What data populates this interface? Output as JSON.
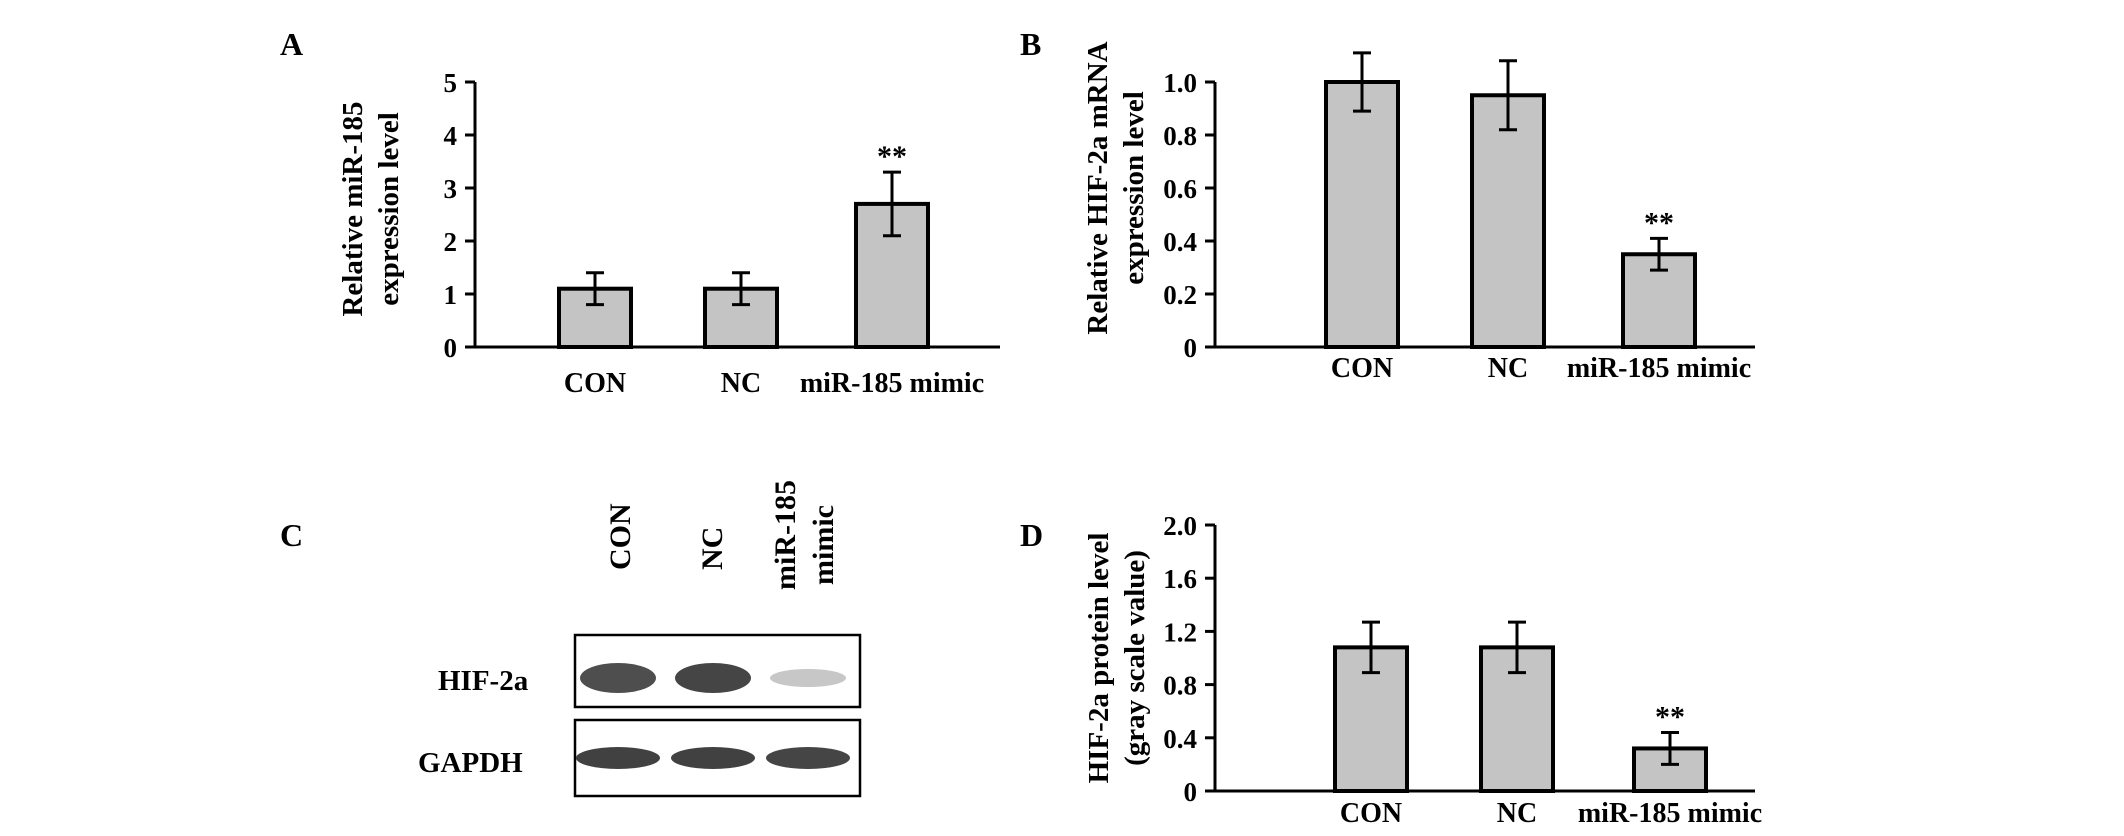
{
  "panels": {
    "a": "A",
    "b": "B",
    "c": "C",
    "d": "D"
  },
  "chart_data": [
    {
      "panel": "A",
      "type": "bar",
      "categories": [
        "CON",
        "NC",
        "miR-185 mimic"
      ],
      "values": [
        1.1,
        1.1,
        2.7
      ],
      "errors": [
        0.3,
        0.3,
        0.6
      ],
      "significance": [
        "",
        "",
        "**"
      ],
      "ylabel_lines": [
        "Relative miR-185",
        "expression level"
      ],
      "ylim": [
        0,
        5
      ],
      "yticks": [
        0,
        1,
        2,
        3,
        4,
        5
      ],
      "ytick_labels": [
        "0",
        "1",
        "2",
        "3",
        "4",
        "5"
      ]
    },
    {
      "panel": "B",
      "type": "bar",
      "categories": [
        "CON",
        "NC",
        "miR-185 mimic"
      ],
      "values": [
        1.0,
        0.95,
        0.35
      ],
      "errors": [
        0.11,
        0.13,
        0.06
      ],
      "significance": [
        "",
        "",
        "**"
      ],
      "ylabel_lines": [
        "Relative HIF-2a mRNA",
        "expression level"
      ],
      "ylim": [
        0,
        1.0
      ],
      "yticks": [
        0,
        0.2,
        0.4,
        0.6,
        0.8,
        1.0
      ],
      "ytick_labels": [
        "0",
        "0.2",
        "0.4",
        "0.6",
        "0.8",
        "1.0"
      ]
    },
    {
      "panel": "D",
      "type": "bar",
      "categories": [
        "CON",
        "NC",
        "miR-185 mimic"
      ],
      "values": [
        1.08,
        1.08,
        0.32
      ],
      "errors": [
        0.19,
        0.19,
        0.12
      ],
      "significance": [
        "",
        "",
        "**"
      ],
      "ylabel_lines": [
        "HIF-2a protein level",
        "(gray scale value)"
      ],
      "ylim": [
        0,
        2.0
      ],
      "yticks": [
        0,
        0.4,
        0.8,
        1.2,
        1.6,
        2.0
      ],
      "ytick_labels": [
        "0",
        "0.4",
        "0.8",
        "1.2",
        "1.6",
        "2.0"
      ]
    }
  ],
  "blot": {
    "lane_labels": [
      "CON",
      "NC",
      "miR-185",
      "mimic"
    ],
    "rows": [
      {
        "label": "HIF-2a",
        "intensities": [
          0.85,
          0.9,
          0.18
        ]
      },
      {
        "label": "GAPDH",
        "intensities": [
          0.92,
          0.92,
          0.9
        ]
      }
    ]
  }
}
